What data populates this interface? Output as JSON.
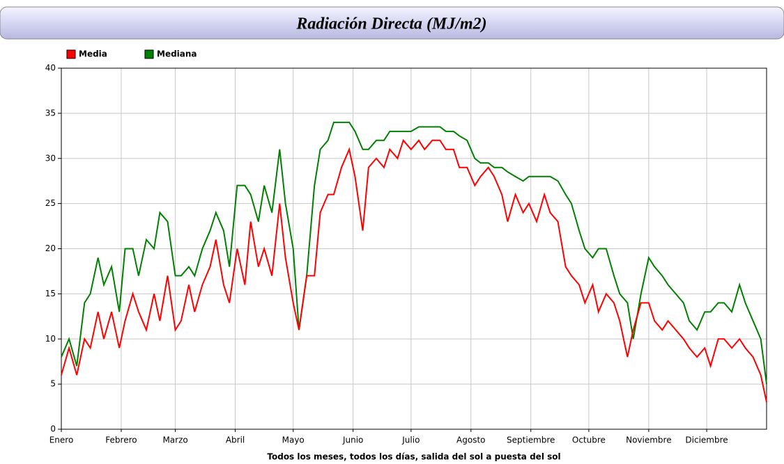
{
  "chart_data": {
    "type": "line",
    "title": "Radiación Directa (MJ/m2)",
    "x_label": "Todos los meses, todos los días, salida del sol a puesta del sol",
    "x": [
      1,
      5,
      9,
      13,
      16,
      20,
      23,
      27,
      31,
      34,
      38,
      41,
      45,
      49,
      52,
      56,
      60,
      63,
      67,
      70,
      74,
      78,
      81,
      85,
      88,
      92,
      96,
      99,
      103,
      106,
      110,
      114,
      117,
      121,
      124,
      128,
      132,
      135,
      139,
      142,
      146,
      150,
      153,
      157,
      160,
      164,
      168,
      171,
      175,
      178,
      182,
      186,
      189,
      193,
      197,
      200,
      204,
      207,
      211,
      215,
      218,
      222,
      225,
      229,
      232,
      236,
      240,
      243,
      247,
      251,
      254,
      258,
      262,
      265,
      269,
      272,
      276,
      279,
      283,
      287,
      290,
      294,
      297,
      301,
      305,
      308,
      312,
      315,
      319,
      323,
      326,
      330,
      334,
      337,
      341,
      344,
      348,
      352,
      355,
      359,
      363,
      366
    ],
    "series": [
      {
        "name": "Media",
        "color": "#ff0000",
        "values": [
          6,
          9,
          6,
          10,
          9,
          13,
          10,
          13,
          9,
          12,
          15,
          13,
          11,
          15,
          12,
          17,
          11,
          12,
          16,
          13,
          16,
          18,
          21,
          16,
          14,
          20,
          16,
          23,
          18,
          20,
          17,
          25,
          19,
          14,
          11,
          17,
          17,
          24,
          26,
          26,
          29,
          31,
          28,
          22,
          29,
          30,
          29,
          31,
          30,
          32,
          31,
          32,
          31,
          32,
          32,
          31,
          31,
          29,
          29,
          27,
          28,
          29,
          28,
          26,
          23,
          26,
          24,
          25,
          23,
          26,
          24,
          23,
          18,
          17,
          16,
          14,
          16,
          13,
          15,
          14,
          12,
          8,
          11,
          14,
          14,
          12,
          11,
          12,
          11,
          10,
          9,
          8,
          9,
          7,
          10,
          10,
          9,
          10,
          9,
          8,
          6,
          3
        ]
      },
      {
        "name": "Mediana",
        "color": "#008000",
        "values": [
          8,
          10,
          7,
          14,
          15,
          19,
          16,
          18,
          13,
          20,
          20,
          17,
          21,
          20,
          24,
          23,
          17,
          17,
          18,
          17,
          20,
          22,
          24,
          22,
          18,
          27,
          27,
          26,
          23,
          27,
          24,
          31,
          25,
          20,
          11,
          17,
          27,
          31,
          32,
          34,
          34,
          34,
          33,
          31,
          31,
          32,
          32,
          33,
          33,
          33,
          33,
          33.5,
          33.5,
          33.5,
          33.5,
          33,
          33,
          32.5,
          32,
          30,
          29.5,
          29.5,
          29,
          29,
          28.5,
          28,
          27.5,
          28,
          28,
          28,
          28,
          27.5,
          26,
          25,
          22,
          20,
          19,
          20,
          20,
          17,
          15,
          14,
          10,
          15,
          19,
          18,
          17,
          16,
          15,
          14,
          12,
          11,
          13,
          13,
          14,
          14,
          13,
          16,
          14,
          12,
          10,
          5
        ]
      }
    ],
    "xlim": [
      1,
      366
    ],
    "xticks": [
      {
        "value": 1,
        "label": "Enero"
      },
      {
        "value": 32,
        "label": "Febrero"
      },
      {
        "value": 60,
        "label": "Marzo"
      },
      {
        "value": 91,
        "label": "Abril"
      },
      {
        "value": 121,
        "label": "Mayo"
      },
      {
        "value": 152,
        "label": "Junio"
      },
      {
        "value": 182,
        "label": "Julio"
      },
      {
        "value": 213,
        "label": "Agosto"
      },
      {
        "value": 244,
        "label": "Septiembre"
      },
      {
        "value": 274,
        "label": "Octubre"
      },
      {
        "value": 305,
        "label": "Noviembre"
      },
      {
        "value": 335,
        "label": "Diciembre"
      }
    ],
    "ylim": [
      0,
      40
    ],
    "yticks": [
      0,
      5,
      10,
      15,
      20,
      25,
      30,
      35,
      40
    ],
    "grid": true,
    "legend": "upper-left"
  }
}
